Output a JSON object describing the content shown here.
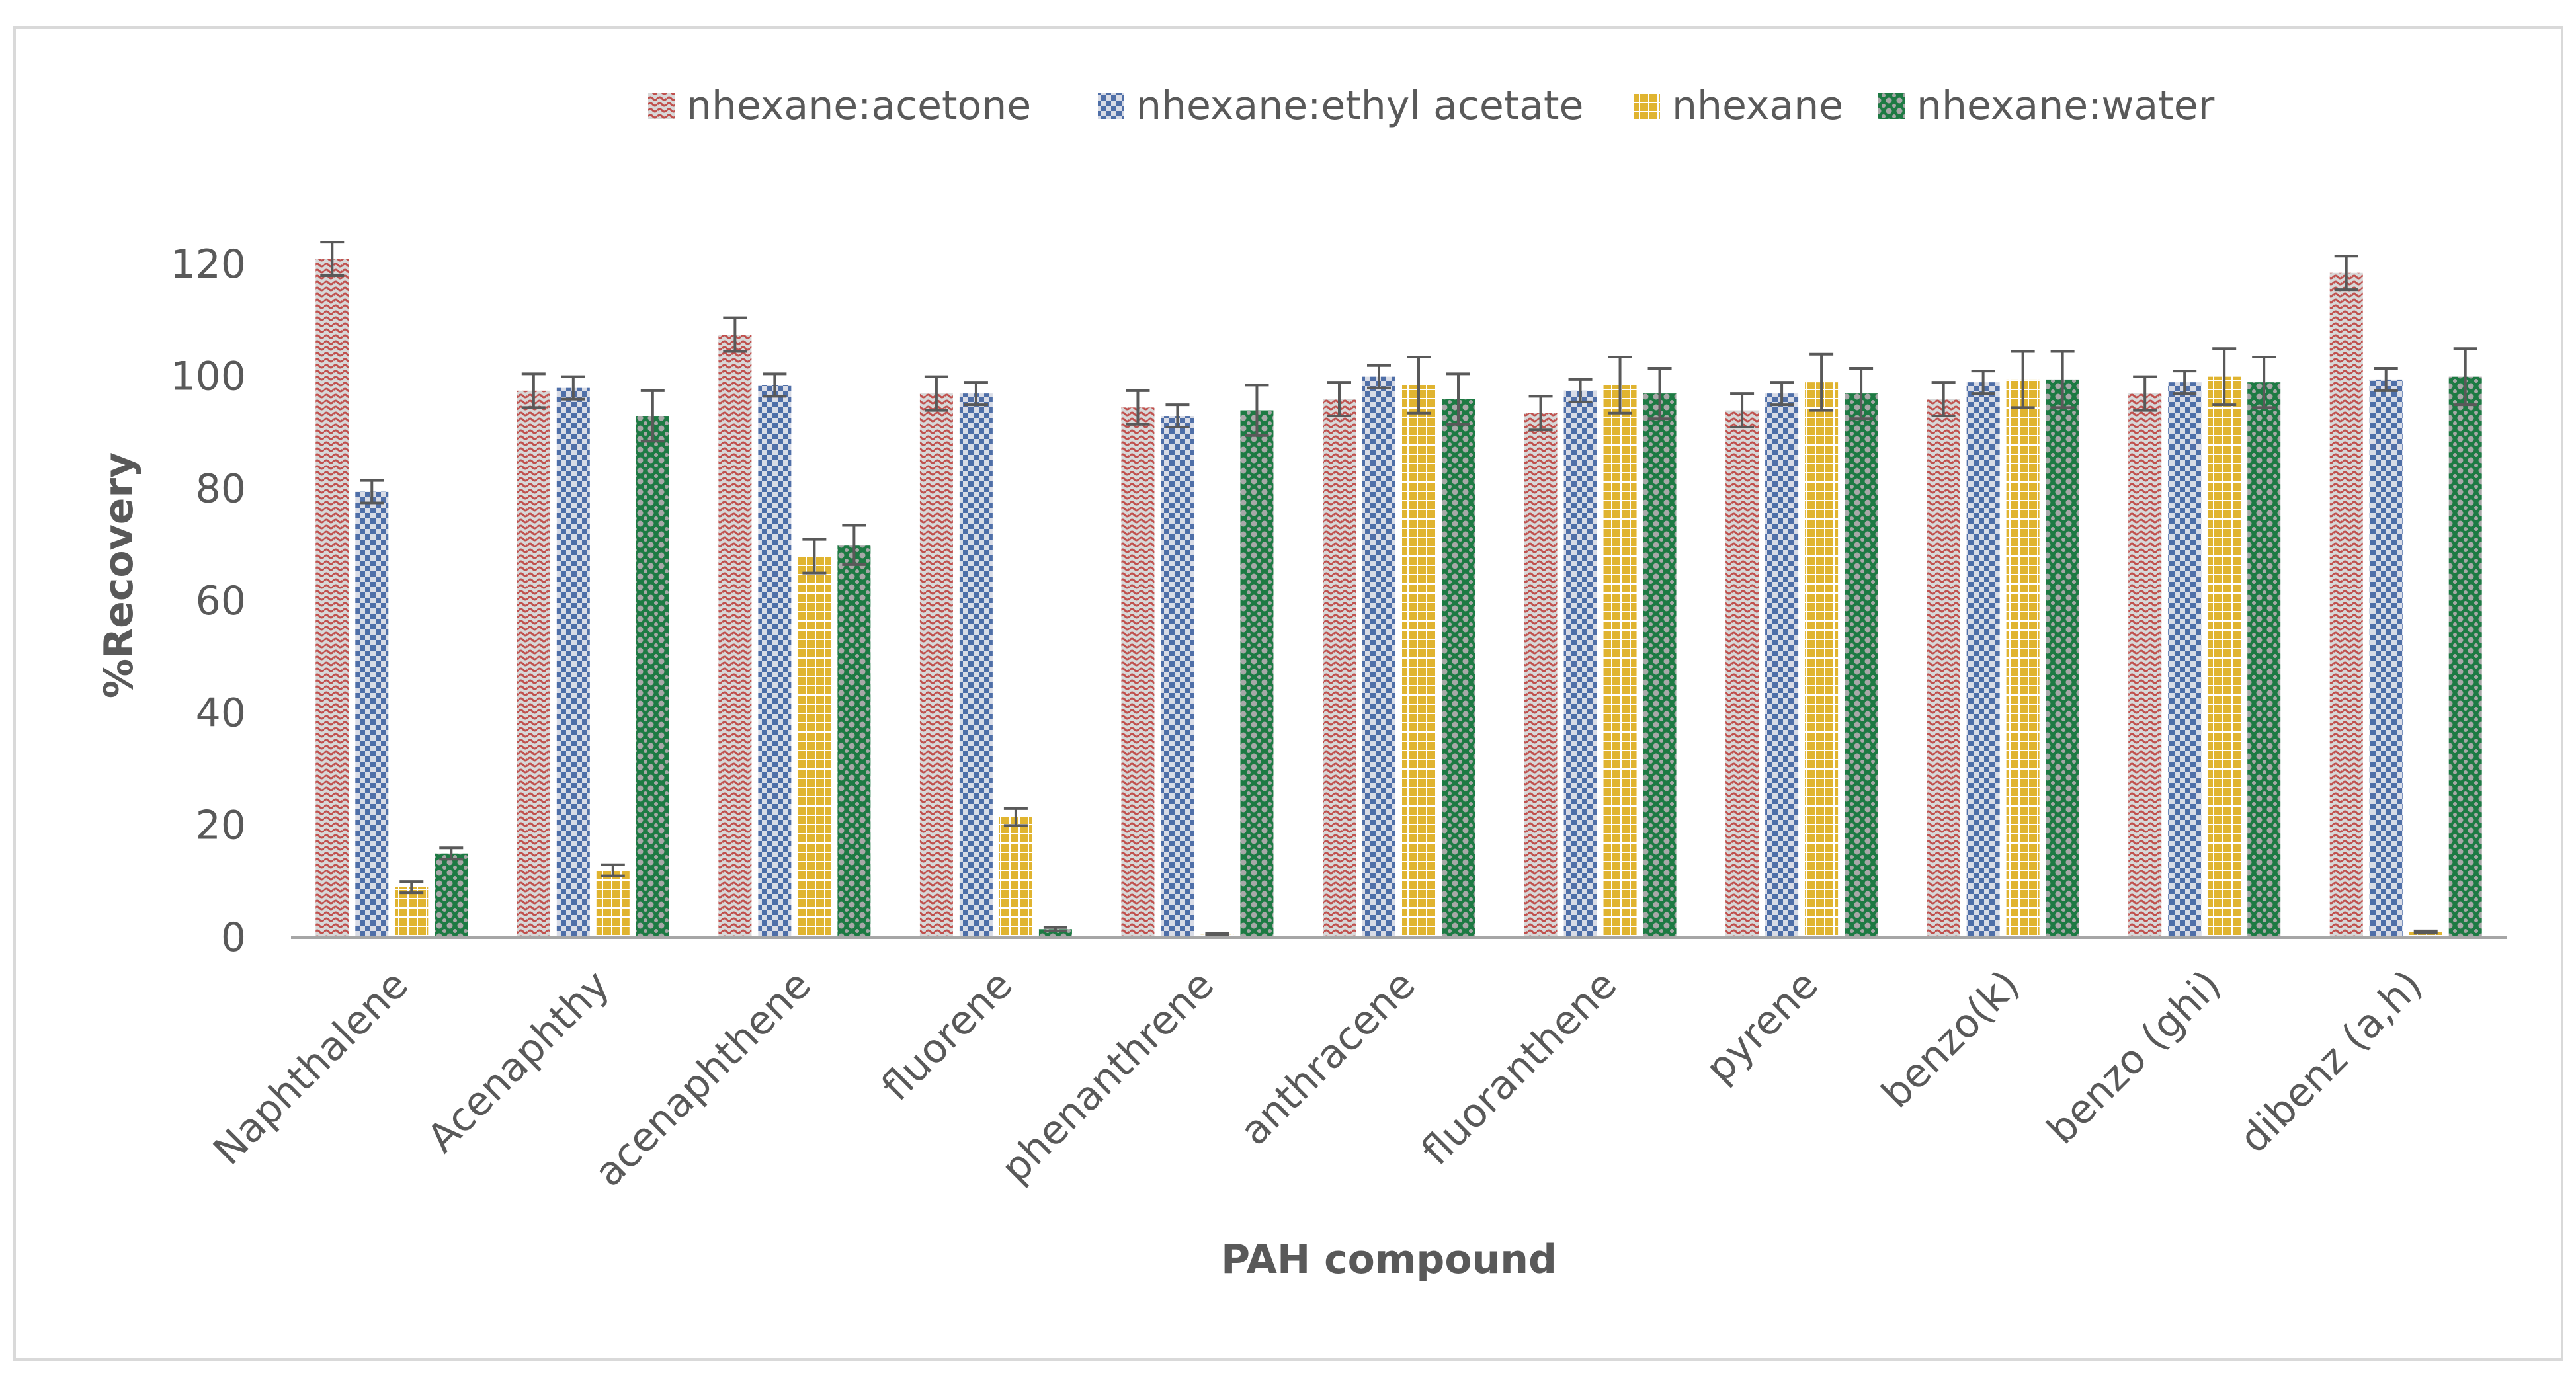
{
  "chart_data": {
    "type": "bar",
    "title": "",
    "xlabel": "PAH compound",
    "ylabel": "%Recovery",
    "ylim": [
      0,
      120
    ],
    "yticks": [
      0,
      20,
      40,
      60,
      80,
      100,
      120
    ],
    "grid": false,
    "legend_position": "top-center",
    "error_bars": true,
    "categories": [
      "Naphthalene",
      "Acenaphthy",
      "acenaphthene",
      "fluorene",
      "phenanthrene",
      "anthracene",
      "fluoranthene",
      "pyrene",
      "benzo(k)",
      "benzo (ghi)",
      "dibenz (a,h)"
    ],
    "series": [
      {
        "name": "nhexane:acetone",
        "color": "#c0504d",
        "pattern": "wave",
        "values": [
          121,
          97.5,
          107.5,
          97,
          94.5,
          96,
          93.5,
          94,
          96,
          97,
          118.5
        ],
        "errors": [
          3,
          3,
          3,
          3,
          3,
          3,
          3,
          3,
          3,
          3,
          3
        ]
      },
      {
        "name": "nhexane:ethyl acetate",
        "color": "#4f6fa8",
        "pattern": "checker",
        "values": [
          79.5,
          98,
          98.5,
          97,
          93,
          100,
          97.5,
          97,
          99,
          99,
          99.5
        ],
        "errors": [
          2,
          2,
          2,
          2,
          2,
          2,
          2,
          2,
          2,
          2,
          2
        ]
      },
      {
        "name": "nhexane",
        "color": "#e0b430",
        "pattern": "grid",
        "values": [
          9,
          12,
          68,
          21.5,
          0.5,
          98.5,
          98.5,
          99,
          99.5,
          100,
          1
        ],
        "errors": [
          1,
          1,
          3,
          1.5,
          0.2,
          5,
          5,
          5,
          5,
          5,
          0.2
        ]
      },
      {
        "name": "nhexane:water",
        "color": "#1d7a43",
        "pattern": "dots",
        "values": [
          15,
          93,
          70,
          1.5,
          94,
          96,
          97,
          97,
          99.5,
          99,
          100
        ],
        "errors": [
          1,
          4.5,
          3.5,
          0.3,
          4.5,
          4.5,
          4.5,
          4.5,
          5,
          4.5,
          5
        ]
      }
    ]
  }
}
